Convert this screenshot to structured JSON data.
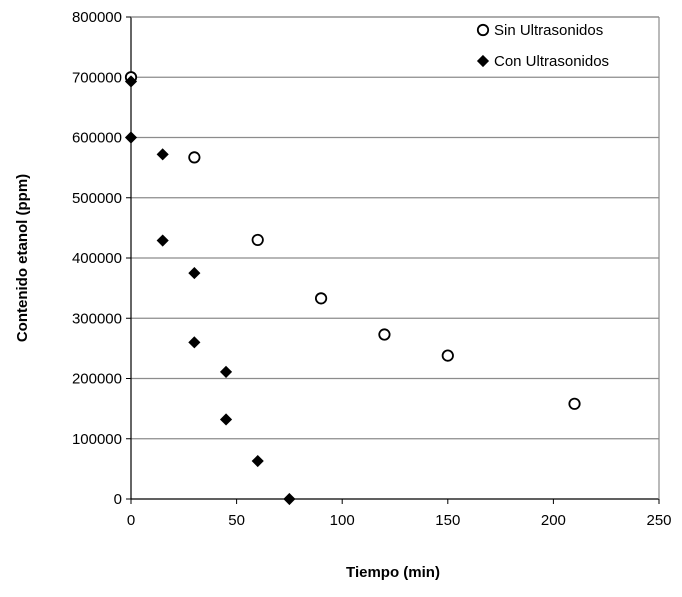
{
  "chart_data": {
    "type": "scatter",
    "title": "",
    "xlabel": "Tiempo (min)",
    "ylabel": "Contenido etanol (ppm)",
    "xlim": [
      0,
      250
    ],
    "ylim": [
      0,
      800000
    ],
    "x_ticks": [
      0,
      50,
      100,
      150,
      200,
      250
    ],
    "y_ticks": [
      0,
      100000,
      200000,
      300000,
      400000,
      500000,
      600000,
      700000,
      800000
    ],
    "grid": "horizontal",
    "legend_position": "top-right",
    "series": [
      {
        "name": "Sin Ultrasonidos",
        "marker": "open-circle",
        "color": "#000000",
        "points": [
          {
            "x": 0,
            "y": 700000
          },
          {
            "x": 30,
            "y": 567000
          },
          {
            "x": 60,
            "y": 430000
          },
          {
            "x": 90,
            "y": 333000
          },
          {
            "x": 120,
            "y": 273000
          },
          {
            "x": 150,
            "y": 238000
          },
          {
            "x": 210,
            "y": 158000
          }
        ]
      },
      {
        "name": "Con Ultrasonidos",
        "marker": "filled-diamond",
        "color": "#000000",
        "points": [
          {
            "x": 0,
            "y": 693000
          },
          {
            "x": 0,
            "y": 600000
          },
          {
            "x": 15,
            "y": 572000
          },
          {
            "x": 15,
            "y": 429000
          },
          {
            "x": 30,
            "y": 375000
          },
          {
            "x": 30,
            "y": 260000
          },
          {
            "x": 45,
            "y": 211000
          },
          {
            "x": 45,
            "y": 132000
          },
          {
            "x": 60,
            "y": 63000
          },
          {
            "x": 75,
            "y": 0
          }
        ]
      }
    ]
  }
}
